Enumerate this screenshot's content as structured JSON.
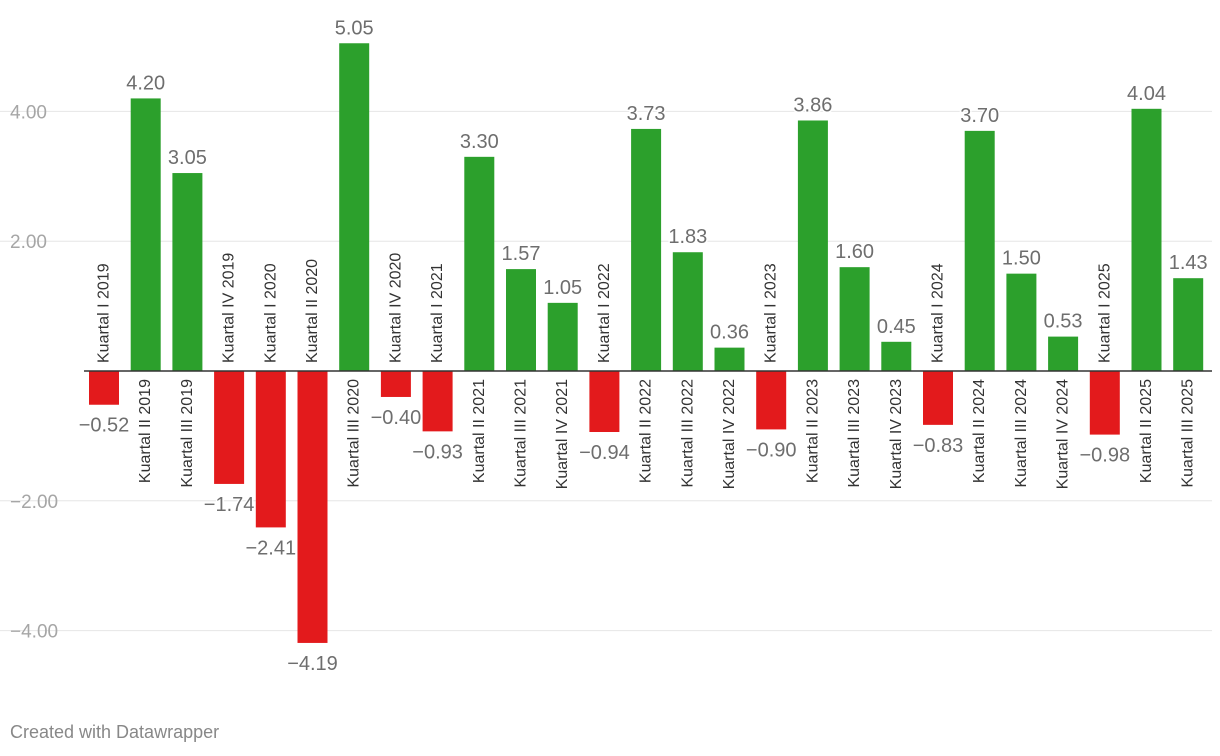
{
  "chart_data": {
    "type": "bar",
    "categories": [
      "Kuartal I 2019",
      "Kuartal II 2019",
      "Kuartal III 2019",
      "Kuartal IV 2019",
      "Kuartal I 2020",
      "Kuartal II 2020",
      "Kuartal III 2020",
      "Kuartal IV 2020",
      "Kuartal I 2021",
      "Kuartal II 2021",
      "Kuartal III 2021",
      "Kuartal IV 2021",
      "Kuartal I 2022",
      "Kuartal II 2022",
      "Kuartal III 2022",
      "Kuartal IV 2022",
      "Kuartal I 2023",
      "Kuartal II 2023",
      "Kuartal III 2023",
      "Kuartal IV 2023",
      "Kuartal I 2024",
      "Kuartal II 2024",
      "Kuartal III 2024",
      "Kuartal IV 2024",
      "Kuartal I 2025",
      "Kuartal II 2025",
      "Kuartal III 2025"
    ],
    "values": [
      -0.52,
      4.2,
      3.05,
      -1.74,
      -2.41,
      -4.19,
      5.05,
      -0.4,
      -0.93,
      3.3,
      1.57,
      1.05,
      -0.94,
      3.73,
      1.83,
      0.36,
      -0.9,
      3.86,
      1.6,
      0.45,
      -0.83,
      3.7,
      1.5,
      0.53,
      -0.98,
      4.04,
      1.43
    ],
    "value_labels": [
      "−0.52",
      "4.20",
      "3.05",
      "−1.74",
      "−2.41",
      "−4.19",
      "5.05",
      "−0.40",
      "−0.93",
      "3.30",
      "1.57",
      "1.05",
      "−0.94",
      "3.73",
      "1.83",
      "0.36",
      "−0.90",
      "3.86",
      "1.60",
      "0.45",
      "−0.83",
      "3.70",
      "1.50",
      "0.53",
      "−0.98",
      "4.04",
      "1.43"
    ],
    "yticks": [
      -4,
      -2,
      2,
      4
    ],
    "ytick_labels": [
      "−4.00",
      "−2.00",
      "2.00",
      "4.00"
    ],
    "ylim": [
      -4.19,
      5.05
    ],
    "colors": {
      "positive": "#2ca02c",
      "negative": "#e31a1c"
    },
    "title": "",
    "xlabel": "",
    "ylabel": ""
  },
  "footer": {
    "credit": "Created with Datawrapper"
  }
}
